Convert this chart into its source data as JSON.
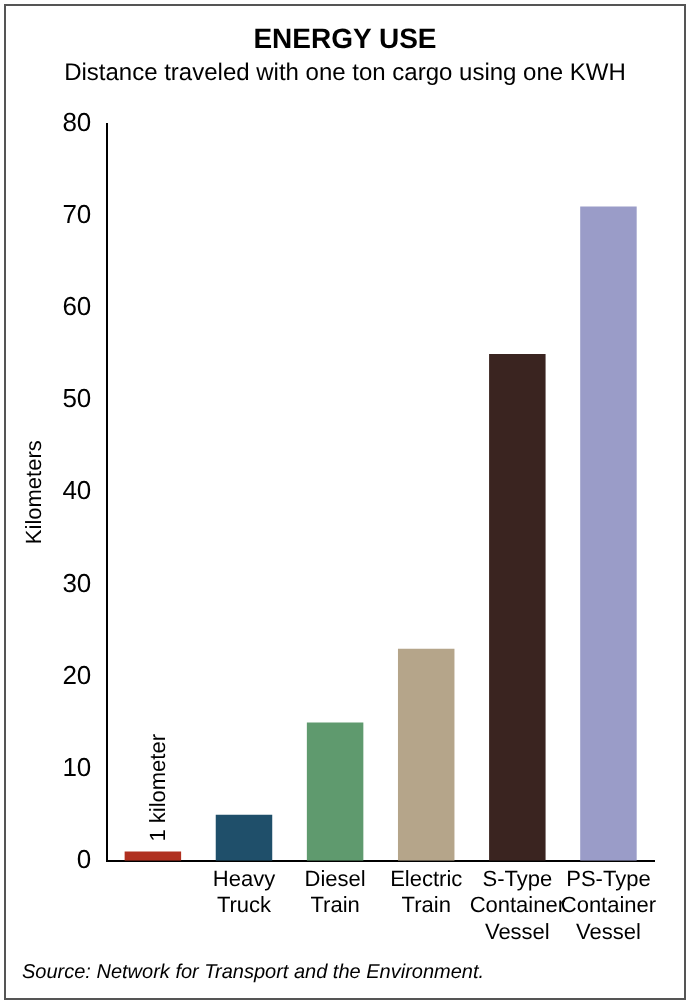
{
  "chart_data": {
    "type": "bar",
    "title": "ENERGY USE",
    "subtitle": "Distance traveled with one ton cargo using one KWH",
    "ylabel": "Kilometers",
    "categories": [
      null,
      "Heavy Truck",
      "Diesel Train",
      "Electric Train",
      "S-Type Container Vessel",
      "PS-Type Container Vessel"
    ],
    "values": [
      1,
      5,
      15,
      23,
      55,
      71
    ],
    "colors": [
      "#b03020",
      "#1f4f6a",
      "#5f9a6e",
      "#b5a58a",
      "#3a2420",
      "#9a9cc8"
    ],
    "ylim": [
      0,
      80
    ],
    "yticks": [
      0,
      10,
      20,
      30,
      40,
      50,
      60,
      70,
      80
    ],
    "grid": false,
    "legend": false,
    "annotations": [
      {
        "text": "1 kilometer",
        "y": 1
      },
      "Source: Network for Transport and the Environment."
    ]
  }
}
